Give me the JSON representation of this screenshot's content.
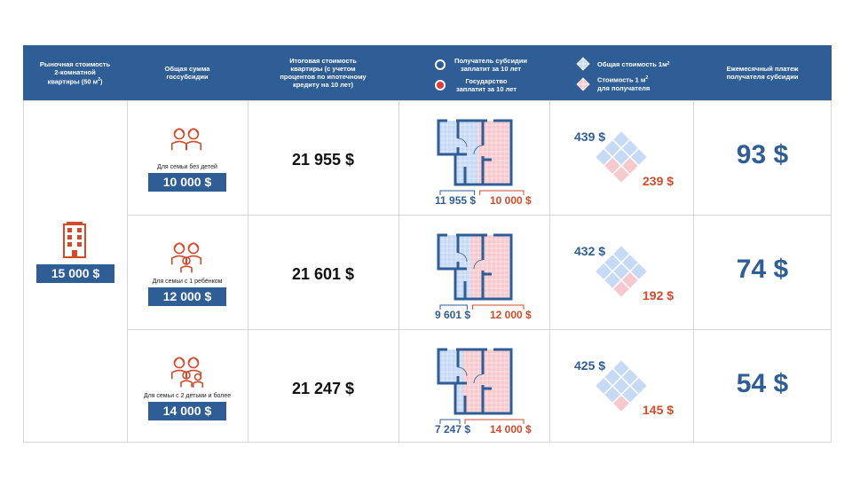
{
  "header": {
    "col1": "Рыночная стоимость 2-комнатной квартиры (50 м",
    "col1_sup": "2",
    "col1_end": ")",
    "col2": "Общая сумма госсубсидии",
    "col3": "Итоговая стоимость квартиры (с учетом процентов по ипотечному кредиту на 10 лет)",
    "legend_blue": "Получатель субсидии заплатит за 10 лет",
    "legend_red": "Государство заплатит за 10 лет",
    "legend_total": "Общая стоимость 1м",
    "legend_total_sup": "2",
    "legend_recipient": "Стоимость 1 м",
    "legend_recipient_sup": "2",
    "legend_recipient_end": "для получателя",
    "col6": "Ежемесячный платеж получателя субсидии"
  },
  "market_price": "15 000 $",
  "colors": {
    "blue": "#2f5d95",
    "red": "#d24a2a",
    "light_blue": "#c6d9f5",
    "light_red": "#f6c9cf"
  },
  "rows": [
    {
      "family": "Для семьи без детей",
      "icon": "couple-icon",
      "subsidy": "10 000 $",
      "total": "21 955 $",
      "recipient_pays": "11 955 $",
      "state_pays": "10 000 $",
      "state_share": 0.455,
      "total_per_m2": "439 $",
      "recipient_per_m2": "239 $",
      "red_cells": 3,
      "monthly": "93 $"
    },
    {
      "family": "Для семьи с 1 ребёнком",
      "icon": "family-one-child-icon",
      "subsidy": "12 000 $",
      "total": "21 601 $",
      "recipient_pays": "9 601 $",
      "state_pays": "12 000 $",
      "state_share": 0.556,
      "total_per_m2": "432 $",
      "recipient_per_m2": "192 $",
      "red_cells": 2,
      "monthly": "74 $"
    },
    {
      "family": "Для семьи с 2 детьми и более",
      "icon": "family-two-children-icon",
      "subsidy": "14 000 $",
      "total": "21 247 $",
      "recipient_pays": "7 247 $",
      "state_pays": "14 000 $",
      "state_share": 0.659,
      "total_per_m2": "425 $",
      "recipient_per_m2": "145 $",
      "red_cells": 1,
      "monthly": "54 $"
    }
  ]
}
